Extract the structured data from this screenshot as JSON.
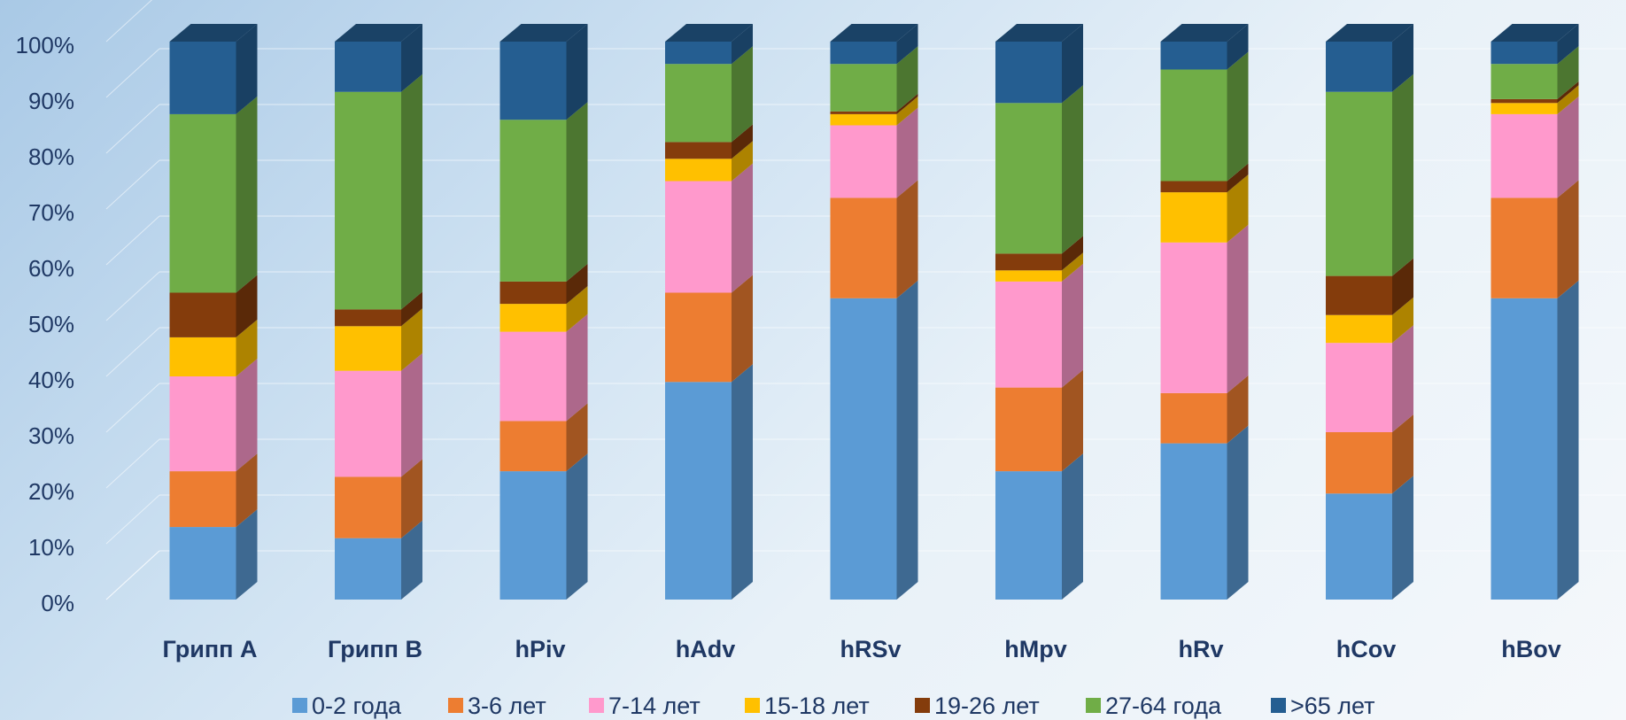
{
  "chart_data": {
    "type": "bar",
    "stacked": true,
    "percent": true,
    "categories": [
      "Грипп A",
      "Грипп B",
      "hPiv",
      "hAdv",
      "hRSv",
      "hMpv",
      "hRv",
      "hCov",
      "hBov"
    ],
    "y_ticks": [
      "0%",
      "10%",
      "20%",
      "30%",
      "40%",
      "50%",
      "60%",
      "70%",
      "80%",
      "90%",
      "100%"
    ],
    "ylim": [
      0,
      100
    ],
    "grid": true,
    "legend_position": "bottom",
    "series": [
      {
        "name": "0-2 года",
        "color": "#5b9bd5",
        "values": [
          13,
          11,
          23,
          39,
          54,
          23,
          28,
          19,
          54
        ]
      },
      {
        "name": "3-6 лет",
        "color": "#ed7d31",
        "values": [
          10,
          11,
          9,
          16,
          18,
          15,
          9,
          11,
          18
        ]
      },
      {
        "name": "7-14 лет",
        "color": "#ff99cc",
        "values": [
          17,
          19,
          16,
          20,
          13,
          19,
          27,
          16,
          15
        ]
      },
      {
        "name": "15-18 лет",
        "color": "#ffc000",
        "values": [
          7,
          8,
          5,
          4,
          2,
          2,
          9,
          5,
          2
        ]
      },
      {
        "name": "19-26 лет",
        "color": "#843c0c",
        "values": [
          8,
          3,
          4,
          3,
          0.5,
          3,
          2,
          7,
          0.7
        ]
      },
      {
        "name": "27-64 года",
        "color": "#70ad47",
        "values": [
          32,
          39,
          29,
          14,
          8.5,
          27,
          20,
          33,
          6.3
        ]
      },
      {
        "name": ">65 лет",
        "color": "#255e91",
        "values": [
          13,
          9,
          14,
          4,
          4,
          11,
          5,
          9,
          4
        ]
      }
    ]
  }
}
